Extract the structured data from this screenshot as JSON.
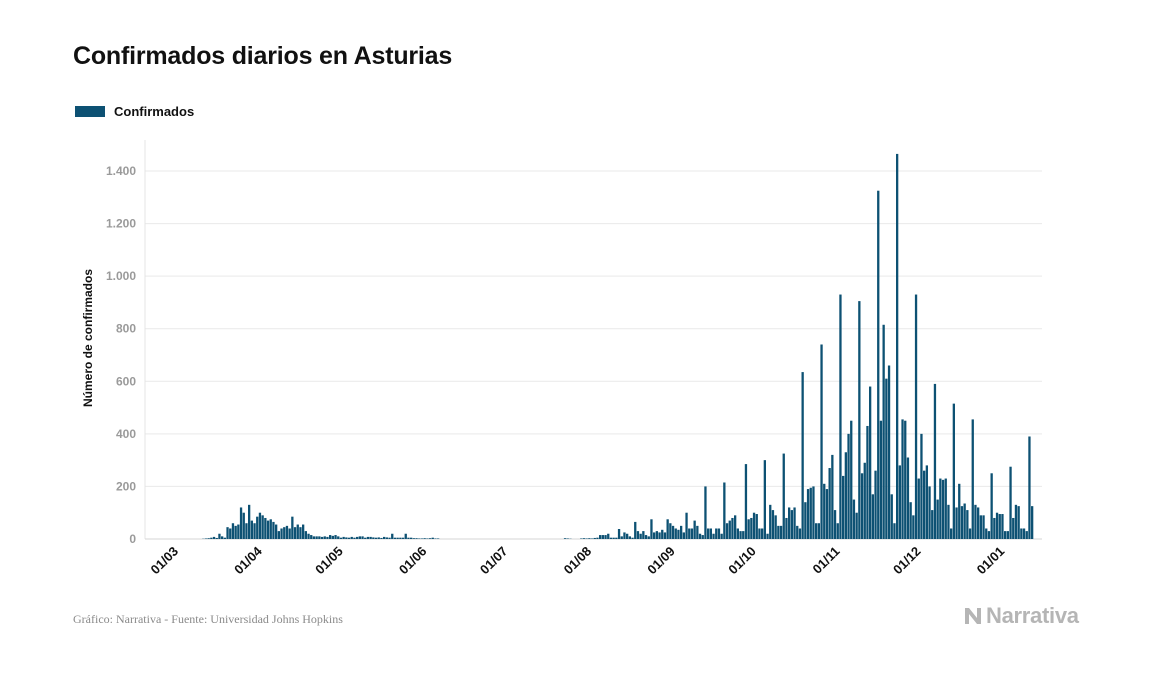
{
  "header": {
    "title": "Confirmados diarios en Asturias"
  },
  "footer": {
    "source": "Gráfico: Narrativa - Fuente: Universidad Johns Hopkins",
    "brand": "Narrativa",
    "brand_icon": "narrativa-logo-icon"
  },
  "chart_data": {
    "type": "bar",
    "title": "Confirmados diarios en Asturias",
    "xlabel": "",
    "ylabel": "Número de confirmados",
    "ylim": [
      0,
      1500
    ],
    "yticks": [
      0,
      200,
      400,
      600,
      800,
      1000,
      1200,
      1400
    ],
    "ytick_labels": [
      "0",
      "200",
      "400",
      "600",
      "800",
      "1.000",
      "1.200",
      "1.400"
    ],
    "xtick_labels": [
      "01/03",
      "01/04",
      "01/05",
      "01/06",
      "01/07",
      "01/08",
      "01/09",
      "01/10",
      "01/11",
      "01/12",
      "01/01"
    ],
    "grid": true,
    "legend_position": "top-left",
    "color": "#0d5173",
    "series": [
      {
        "name": "Confirmados",
        "values": [
          0,
          0,
          0,
          0,
          0,
          0,
          0,
          0,
          0,
          0,
          0,
          0,
          0,
          1,
          2,
          3,
          5,
          8,
          4,
          20,
          10,
          5,
          45,
          40,
          60,
          50,
          55,
          120,
          100,
          60,
          130,
          70,
          60,
          85,
          100,
          90,
          80,
          70,
          75,
          65,
          55,
          30,
          40,
          45,
          50,
          40,
          85,
          45,
          55,
          45,
          55,
          30,
          20,
          15,
          10,
          10,
          10,
          8,
          10,
          8,
          15,
          12,
          15,
          10,
          5,
          8,
          6,
          5,
          8,
          5,
          8,
          10,
          10,
          5,
          8,
          8,
          6,
          5,
          6,
          4,
          8,
          6,
          5,
          20,
          5,
          5,
          5,
          5,
          20,
          5,
          5,
          3,
          3,
          2,
          2,
          3,
          2,
          3,
          5,
          2,
          2,
          0,
          0,
          0,
          0,
          0,
          0,
          0,
          0,
          0,
          0,
          0,
          0,
          0,
          0,
          0,
          0,
          0,
          0,
          0,
          0,
          0,
          0,
          0,
          0,
          0,
          0,
          0,
          0,
          0,
          0,
          0,
          0,
          0,
          0,
          0,
          0,
          0,
          0,
          0,
          0,
          0,
          0,
          0,
          0,
          0,
          0,
          3,
          2,
          1,
          0,
          0,
          0,
          2,
          3,
          2,
          3,
          2,
          4,
          5,
          15,
          15,
          15,
          20,
          5,
          5,
          5,
          38,
          10,
          25,
          20,
          10,
          5,
          65,
          30,
          20,
          30,
          15,
          10,
          75,
          25,
          30,
          25,
          35,
          25,
          75,
          60,
          50,
          40,
          35,
          50,
          25,
          100,
          40,
          40,
          70,
          50,
          20,
          15,
          200,
          40,
          40,
          20,
          40,
          40,
          20,
          215,
          60,
          70,
          80,
          90,
          40,
          30,
          30,
          285,
          75,
          80,
          100,
          95,
          40,
          40,
          300,
          20,
          130,
          110,
          90,
          50,
          50,
          325,
          80,
          120,
          110,
          120,
          50,
          40,
          635,
          140,
          190,
          195,
          200,
          60,
          60,
          740,
          210,
          190,
          270,
          320,
          110,
          60,
          930,
          240,
          330,
          400,
          450,
          150,
          100,
          905,
          250,
          290,
          430,
          580,
          170,
          260,
          1325,
          450,
          815,
          610,
          660,
          170,
          60,
          1465,
          280,
          455,
          450,
          310,
          140,
          90,
          930,
          230,
          400,
          260,
          280,
          200,
          110,
          590,
          150,
          230,
          225,
          230,
          130,
          40,
          515,
          120,
          210,
          125,
          135,
          110,
          40,
          455,
          130,
          120,
          90,
          90,
          40,
          30,
          250,
          80,
          100,
          95,
          95,
          30,
          30,
          275,
          80,
          130,
          125,
          40,
          40,
          30,
          390,
          125
        ]
      }
    ]
  }
}
